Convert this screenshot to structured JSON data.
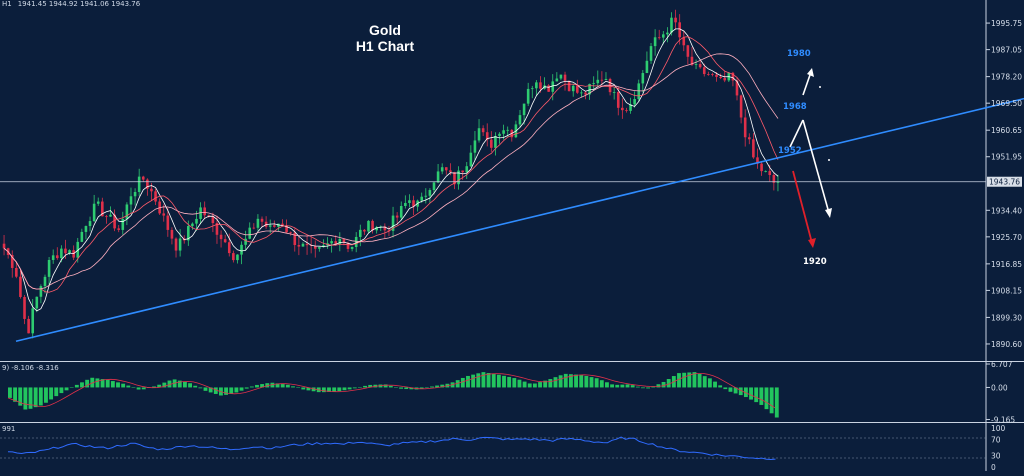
{
  "symbol_label": "H1",
  "ohlc_readout": "1941.45 1944.92 1941.06 1943.76",
  "title_line1": "Gold",
  "title_line2": "H1 Chart",
  "current_price_label": "1943.76",
  "annotations": {
    "level_1980": "1980",
    "level_1968": "1968",
    "level_1952": "1952",
    "level_1920": "1920"
  },
  "macd_info": "9) -8.106 -8.316",
  "rsi_info": "991",
  "colors": {
    "background": "#0b1e3b",
    "bull_candle": "#2ecc71",
    "bear_candle": "#e0304a",
    "trendline": "#2f8cff",
    "annotation_blue": "#2f8cff",
    "arrow_red": "#e0202a",
    "arrow_white": "#ffffff",
    "macd_hist": "#22c55e"
  },
  "chart_data": {
    "type": "candlestick",
    "timeframe": "H1",
    "price_axis": {
      "ylim": [
        1886,
        2002
      ],
      "ticks": [
        "1995.75",
        "1987.05",
        "1978.20",
        "1969.50",
        "1960.65",
        "1951.95",
        "1934.40",
        "1925.70",
        "1916.85",
        "1908.15",
        "1899.30",
        "1890.60"
      ]
    },
    "last_price": 1943.76,
    "trendline": {
      "from_price": 1891.5,
      "to_price": 1971.0
    },
    "path_points": [
      1922,
      1915,
      1894,
      1908,
      1918,
      1922,
      1920,
      1930,
      1936,
      1932,
      1928,
      1940,
      1945,
      1939,
      1930,
      1922,
      1928,
      1935,
      1930,
      1925,
      1919,
      1925,
      1932,
      1928,
      1931,
      1925,
      1922,
      1920,
      1923,
      1926,
      1922,
      1928,
      1930,
      1928,
      1932,
      1938,
      1936,
      1944,
      1948,
      1944,
      1950,
      1962,
      1955,
      1962,
      1960,
      1970,
      1978,
      1974,
      1980,
      1975,
      1972,
      1975,
      1979,
      1970,
      1968,
      1976,
      1988,
      1992,
      1997,
      1985,
      1980,
      1979,
      1976,
      1978,
      1962,
      1950,
      1946,
      1942
    ],
    "macd": {
      "ylim": [
        -9.6,
        6.707
      ],
      "ticks": [
        "6.707",
        "0.00",
        "-9.165"
      ],
      "values": [
        -3,
        -6.5,
        -5,
        -2,
        0.5,
        2.8,
        2.2,
        1,
        -0.8,
        0.5,
        2.4,
        1.3,
        -1,
        -2.4,
        -1.3,
        0.6,
        1.4,
        0.8,
        -0.6,
        -1.4,
        -1.2,
        -0.4,
        0.7,
        0.9,
        -0.4,
        -0.6,
        0.4,
        1.2,
        3.2,
        4.4,
        3.6,
        2.6,
        0.9,
        2.2,
        3.9,
        3.6,
        2.6,
        0.7,
        0.9,
        -0.5,
        1.4,
        4.1,
        4.4,
        2.4,
        -1,
        -2.5,
        -4.8,
        -8.6
      ]
    },
    "rsi": {
      "ylim": [
        0,
        100
      ],
      "ticks": [
        "100",
        "70",
        "30",
        "0"
      ],
      "values": [
        40,
        33,
        38,
        45,
        55,
        58,
        52,
        48,
        55,
        60,
        50,
        45,
        50,
        55,
        52,
        48,
        45,
        50,
        52,
        48,
        55,
        58,
        60,
        62,
        58,
        65,
        60,
        55,
        60,
        62,
        65,
        68,
        72,
        70,
        75,
        73,
        70,
        72,
        70,
        68,
        72,
        70,
        65,
        62,
        75,
        70,
        60,
        50,
        42,
        38,
        35,
        30,
        28,
        25,
        22,
        22
      ]
    }
  }
}
